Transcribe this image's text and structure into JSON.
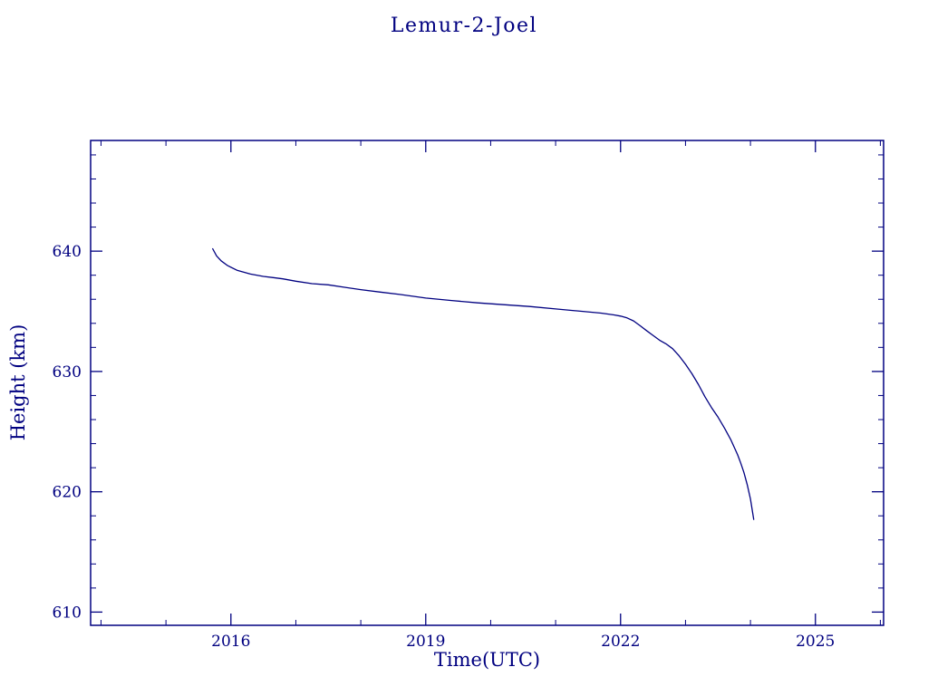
{
  "page": {
    "background": "#ffffff"
  },
  "chart_data": {
    "type": "line",
    "title": "Lemur-2-Joel",
    "xlabel": "Time(UTC)",
    "ylabel": "Height (km)",
    "xlim": [
      2013.84,
      2026.05
    ],
    "ylim": [
      608.9,
      649.2
    ],
    "xticks": [
      2016,
      2019,
      2022,
      2025
    ],
    "yticks": [
      610,
      620,
      630,
      640
    ],
    "x_minor_step": 1,
    "y_minor_step": 2,
    "grid": false,
    "legend": "none",
    "line_color": "#000080",
    "axis_color": "#000080",
    "series": [
      {
        "name": "height",
        "x": [
          2015.72,
          2015.78,
          2015.85,
          2015.95,
          2016.1,
          2016.3,
          2016.5,
          2016.65,
          2016.8,
          2017.0,
          2017.25,
          2017.5,
          2017.75,
          2018.0,
          2018.3,
          2018.6,
          2019.0,
          2019.4,
          2019.8,
          2020.2,
          2020.6,
          2021.0,
          2021.4,
          2021.7,
          2021.9,
          2022.0,
          2022.1,
          2022.2,
          2022.3,
          2022.4,
          2022.5,
          2022.6,
          2022.7,
          2022.8,
          2022.9,
          2023.0,
          2023.1,
          2023.2,
          2023.3,
          2023.4,
          2023.5,
          2023.6,
          2023.7,
          2023.8,
          2023.85,
          2023.9,
          2023.95,
          2024.0,
          2024.05
        ],
        "y": [
          640.2,
          639.6,
          639.2,
          638.8,
          638.4,
          638.1,
          637.9,
          637.8,
          637.7,
          637.5,
          637.3,
          637.2,
          637.0,
          636.8,
          636.6,
          636.4,
          636.1,
          635.9,
          635.7,
          635.55,
          635.4,
          635.2,
          635.0,
          634.85,
          634.7,
          634.6,
          634.45,
          634.2,
          633.8,
          633.4,
          633.0,
          632.6,
          632.3,
          631.9,
          631.3,
          630.6,
          629.8,
          628.9,
          627.9,
          627.0,
          626.2,
          625.3,
          624.3,
          623.1,
          622.4,
          621.6,
          620.6,
          619.4,
          617.7
        ]
      }
    ]
  }
}
